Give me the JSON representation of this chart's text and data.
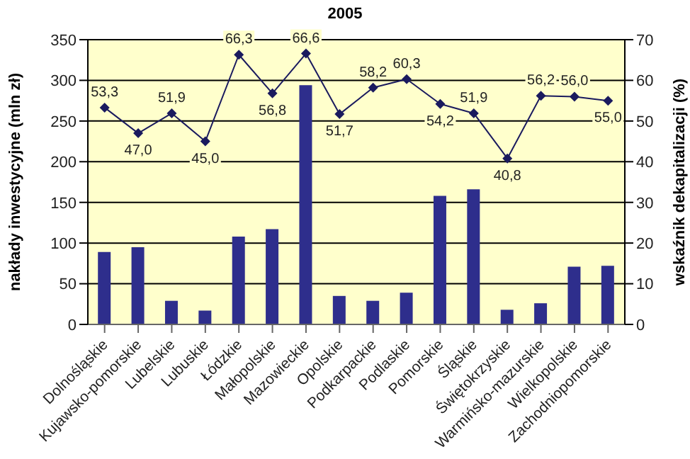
{
  "chart_data": {
    "type": "bar",
    "title": "2005",
    "ylabel": "nakłady inwestycyjne (mln zł)",
    "y2label": "wskaźnik dekapitalizacji (%)",
    "categories": [
      "Dolnośląskie",
      "Kujawsko-pomorskie",
      "Lubelskie",
      "Lubuskie",
      "Łódzkie",
      "Małopolskie",
      "Mazowieckie",
      "Opolskie",
      "Podkarpackie",
      "Podlaskie",
      "Pomorskie",
      "Śląskie",
      "Świętokrzyskie",
      "Warmińsko-mazurskie",
      "Wielkopolskie",
      "Zachodniopomorskie"
    ],
    "series": [
      {
        "color": "#2e2e8c",
        "values": [
          89,
          95,
          29,
          17,
          108,
          117,
          294,
          35,
          29,
          39,
          158,
          166,
          18,
          26,
          71,
          72
        ]
      },
      {
        "type": "line",
        "axis": "y2",
        "color": "#1a1a5e",
        "marker": "diamond",
        "values": [
          53.3,
          47.0,
          51.9,
          45.0,
          66.3,
          56.8,
          66.6,
          51.7,
          58.2,
          60.3,
          54.2,
          51.9,
          40.8,
          56.2,
          56.0,
          55.0
        ],
        "value_labels": [
          "53,3",
          "47,0",
          "51,9",
          "45,0",
          "66,3",
          "56,8",
          "66,6",
          "51,7",
          "58,2",
          "60,3",
          "54,2",
          "51,9",
          "40,8",
          "56,2",
          "56,0",
          "55,0"
        ]
      }
    ],
    "ylim": [
      0,
      350
    ],
    "yticks": [
      0,
      50,
      100,
      150,
      200,
      250,
      300,
      350
    ],
    "y2lim": [
      0,
      70
    ],
    "y2ticks": [
      0,
      10,
      20,
      30,
      40,
      50,
      60,
      70
    ],
    "grid": "y",
    "legend": false
  }
}
